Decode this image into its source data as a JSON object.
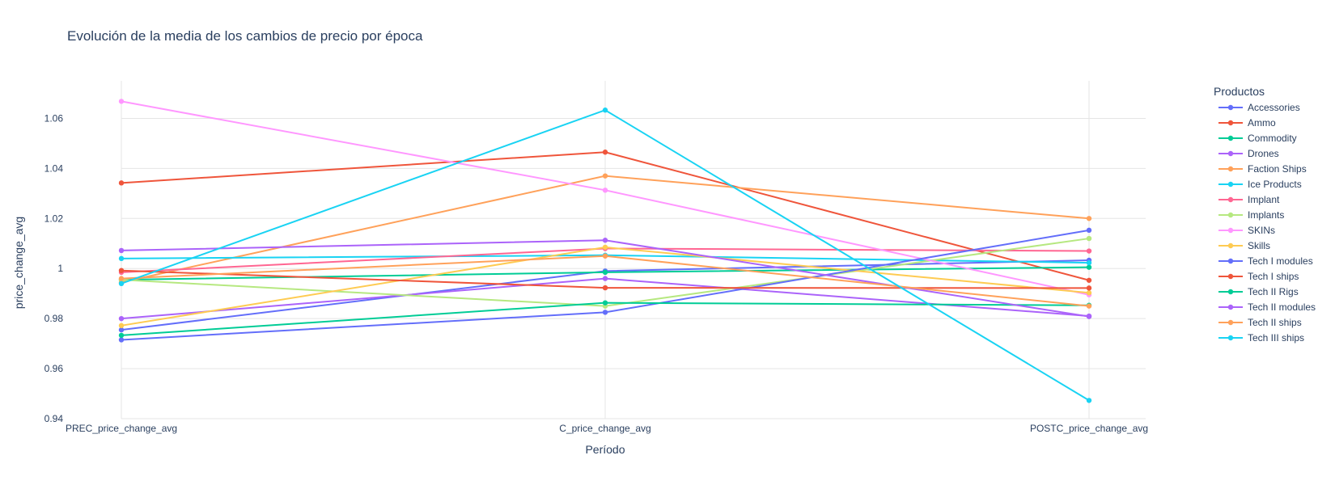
{
  "chart_data": {
    "type": "line",
    "title": "Evolución de la media de los cambios de precio por época",
    "xlabel": "Período",
    "ylabel": "price_change_avg",
    "categories": [
      "PREC_price_change_avg",
      "C_price_change_avg",
      "POSTC_price_change_avg"
    ],
    "ylim": [
      0.94,
      1.075
    ],
    "y_ticks": [
      {
        "value": 0.94,
        "label": "0.94"
      },
      {
        "value": 0.96,
        "label": "0.96"
      },
      {
        "value": 0.98,
        "label": "0.98"
      },
      {
        "value": 1.0,
        "label": "1"
      },
      {
        "value": 1.02,
        "label": "1.02"
      },
      {
        "value": 1.04,
        "label": "1.04"
      },
      {
        "value": 1.06,
        "label": "1.06"
      }
    ],
    "grid": true,
    "legend": {
      "title": "Productos",
      "position": "right"
    },
    "series": [
      {
        "name": "Accessories",
        "color": "#636efa",
        "values": [
          0.9755,
          0.999,
          1.0033
        ]
      },
      {
        "name": "Ammo",
        "color": "#EF553B",
        "values": [
          1.0342,
          1.0465,
          0.9953
        ]
      },
      {
        "name": "Commodity",
        "color": "#00cc96",
        "values": [
          0.9955,
          0.9985,
          1.0005
        ]
      },
      {
        "name": "Drones",
        "color": "#ab63fa",
        "values": [
          0.98,
          0.996,
          0.981
        ]
      },
      {
        "name": "Faction Ships",
        "color": "#FFA15A",
        "values": [
          0.9945,
          1.037,
          1.02
        ]
      },
      {
        "name": "Ice Products",
        "color": "#19d3f3",
        "values": [
          1.004,
          1.0053,
          1.0023
        ]
      },
      {
        "name": "Implant",
        "color": "#FF6692",
        "values": [
          0.9985,
          1.008,
          1.007
        ]
      },
      {
        "name": "Implants",
        "color": "#B6E880",
        "values": [
          0.9955,
          0.985,
          1.012
        ]
      },
      {
        "name": "SKINs",
        "color": "#FF97FF",
        "values": [
          1.0668,
          1.0313,
          0.9895
        ]
      },
      {
        "name": "Skills",
        "color": "#FECB52",
        "values": [
          0.9772,
          1.0085,
          0.9903
        ]
      },
      {
        "name": "Tech I modules",
        "color": "#636efa",
        "values": [
          0.9715,
          0.9825,
          1.0153
        ]
      },
      {
        "name": "Tech I ships",
        "color": "#EF553B",
        "values": [
          0.9992,
          0.9923,
          0.9922
        ]
      },
      {
        "name": "Tech II Rigs",
        "color": "#00cc96",
        "values": [
          0.9733,
          0.9863,
          0.9853
        ]
      },
      {
        "name": "Tech II modules",
        "color": "#ab63fa",
        "values": [
          1.0072,
          1.0113,
          0.9808
        ]
      },
      {
        "name": "Tech II ships",
        "color": "#FFA15A",
        "values": [
          0.996,
          1.005,
          0.985
        ]
      },
      {
        "name": "Tech III ships",
        "color": "#19d3f3",
        "values": [
          0.994,
          1.0633,
          0.9473
        ]
      }
    ]
  }
}
